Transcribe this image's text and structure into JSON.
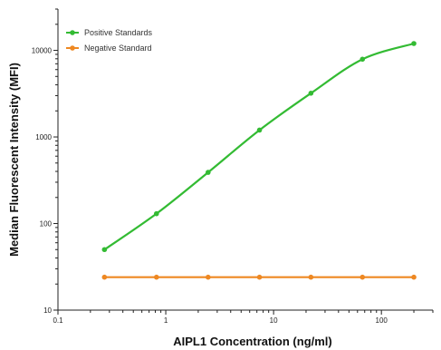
{
  "chart_data": {
    "type": "line",
    "title": "",
    "xlabel": "AIPL1 Concentration (ng/ml)",
    "ylabel": "Median Fluorescent Intensity (MFI)",
    "x_scale": "log",
    "y_scale": "log",
    "xlim": [
      0.1,
      300
    ],
    "ylim": [
      10,
      30000
    ],
    "x_ticks": [
      {
        "value": 0.1,
        "label": "0.1"
      },
      {
        "value": 1,
        "label": "1"
      },
      {
        "value": 10,
        "label": "10"
      },
      {
        "value": 100,
        "label": "100"
      }
    ],
    "y_ticks": [
      {
        "value": 10,
        "label": "10"
      },
      {
        "value": 100,
        "label": "100"
      },
      {
        "value": 1000,
        "label": "1000"
      },
      {
        "value": 10000,
        "label": "10000"
      }
    ],
    "legend_position": "top-left",
    "grid": false,
    "series": [
      {
        "name": "Positive Standards",
        "color": "#33bb33",
        "x": [
          0.27,
          0.82,
          2.47,
          7.4,
          22.2,
          66.7,
          200
        ],
        "y": [
          50,
          130,
          390,
          1200,
          3200,
          7900,
          12000
        ]
      },
      {
        "name": "Negative Standard",
        "color": "#ee8822",
        "x": [
          0.27,
          0.82,
          2.47,
          7.4,
          22.2,
          66.7,
          200
        ],
        "y": [
          24,
          24,
          24,
          24,
          24,
          24,
          24
        ]
      }
    ]
  }
}
